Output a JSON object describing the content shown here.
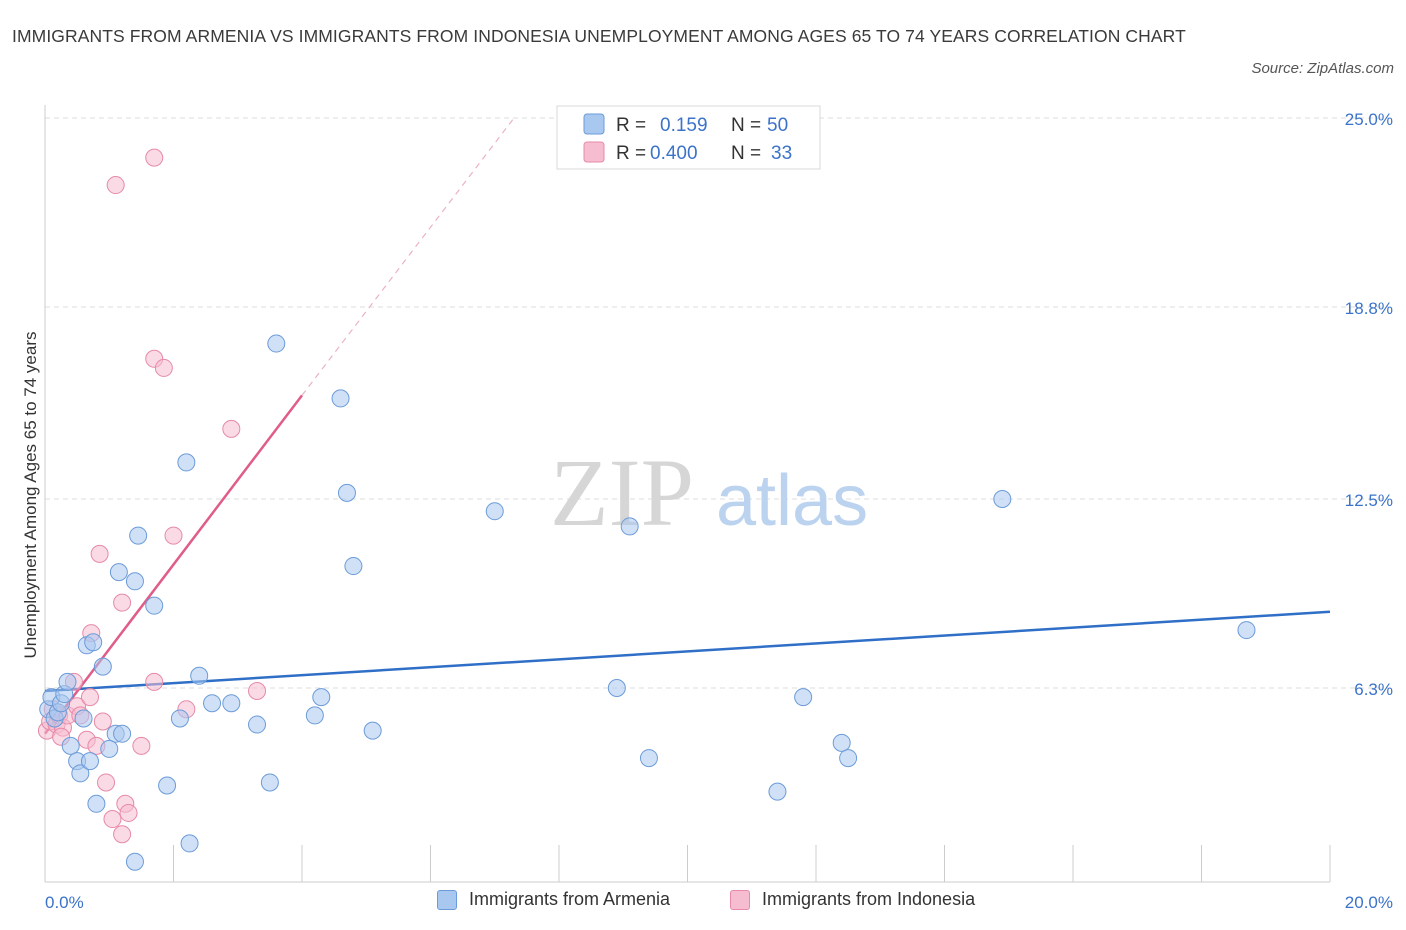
{
  "title": "IMMIGRANTS FROM ARMENIA VS IMMIGRANTS FROM INDONESIA UNEMPLOYMENT AMONG AGES 65 TO 74 YEARS CORRELATION CHART",
  "source": "Source: ZipAtlas.com",
  "watermark": {
    "zip": "ZIP",
    "atlas": "atlas"
  },
  "legend_box": {
    "rows": [
      {
        "r_label": "R =",
        "r_value": "0.159",
        "n_label": "N =",
        "n_value": "50"
      },
      {
        "r_label": "R =",
        "r_value": "0.400",
        "n_label": "N =",
        "n_value": "33"
      }
    ]
  },
  "colors": {
    "armenia_fill": "#a9c8f0",
    "armenia_stroke": "#6b9bd8",
    "armenia_line": "#2f6fc7",
    "indonesia_fill": "#f6bcd0",
    "indonesia_stroke": "#e68aa8",
    "indonesia_line": "#e05c8a",
    "grid": "#dddddd",
    "tick_text": "#3b73c9"
  },
  "chart_data": {
    "type": "scatter",
    "title": "IMMIGRANTS FROM ARMENIA VS IMMIGRANTS FROM INDONESIA UNEMPLOYMENT AMONG AGES 65 TO 74 YEARS CORRELATION CHART",
    "xlabel": "",
    "ylabel": "Unemployment Among Ages 65 to 74 years",
    "xlim": [
      0,
      20
    ],
    "ylim": [
      0,
      25
    ],
    "x_tick_labels": [
      {
        "value": 0,
        "label": "0.0%"
      },
      {
        "value": 20,
        "label": "20.0%"
      }
    ],
    "y_tick_labels": [
      {
        "value": 6.3,
        "label": "6.3%"
      },
      {
        "value": 12.5,
        "label": "12.5%"
      },
      {
        "value": 18.8,
        "label": "18.8%"
      },
      {
        "value": 25.0,
        "label": "25.0%"
      }
    ],
    "grid": true,
    "series": [
      {
        "name": "Immigrants from Armenia",
        "r": 0.159,
        "n": 50,
        "trend": {
          "x": [
            0,
            20
          ],
          "y": [
            6.2,
            8.8
          ]
        },
        "points": [
          [
            0.05,
            5.6
          ],
          [
            0.1,
            6.0
          ],
          [
            0.15,
            5.3
          ],
          [
            0.2,
            5.5
          ],
          [
            0.25,
            5.8
          ],
          [
            0.3,
            6.1
          ],
          [
            0.35,
            6.5
          ],
          [
            0.4,
            4.4
          ],
          [
            0.5,
            3.9
          ],
          [
            0.55,
            3.5
          ],
          [
            0.6,
            5.3
          ],
          [
            0.65,
            7.7
          ],
          [
            0.7,
            3.9
          ],
          [
            0.75,
            7.8
          ],
          [
            0.8,
            2.5
          ],
          [
            0.9,
            7.0
          ],
          [
            1.0,
            4.3
          ],
          [
            1.1,
            4.8
          ],
          [
            1.15,
            10.1
          ],
          [
            1.2,
            4.8
          ],
          [
            1.4,
            9.8
          ],
          [
            1.45,
            11.3
          ],
          [
            1.7,
            9.0
          ],
          [
            1.9,
            3.1
          ],
          [
            2.1,
            5.3
          ],
          [
            2.2,
            13.7
          ],
          [
            2.4,
            6.7
          ],
          [
            2.6,
            5.8
          ],
          [
            2.9,
            5.8
          ],
          [
            3.3,
            5.1
          ],
          [
            3.5,
            3.2
          ],
          [
            3.6,
            17.6
          ],
          [
            4.2,
            5.4
          ],
          [
            4.3,
            6.0
          ],
          [
            4.6,
            15.8
          ],
          [
            4.7,
            12.7
          ],
          [
            4.8,
            10.3
          ],
          [
            5.1,
            4.9
          ],
          [
            7.0,
            12.1
          ],
          [
            8.9,
            6.3
          ],
          [
            9.1,
            11.6
          ],
          [
            9.4,
            4.0
          ],
          [
            11.4,
            2.9
          ],
          [
            11.8,
            6.0
          ],
          [
            12.4,
            4.5
          ],
          [
            12.5,
            4.0
          ],
          [
            14.9,
            12.5
          ],
          [
            18.7,
            8.2
          ],
          [
            1.4,
            0.6
          ],
          [
            2.25,
            1.2
          ]
        ]
      },
      {
        "name": "Immigrants from Indonesia",
        "r": 0.4,
        "n": 33,
        "trend": {
          "x": [
            0,
            4.0
          ],
          "y": [
            4.8,
            15.9
          ]
        },
        "trend_dashed": {
          "x": [
            4.0,
            7.3
          ],
          "y": [
            15.9,
            25.0
          ]
        },
        "points": [
          [
            0.03,
            4.9
          ],
          [
            0.08,
            5.2
          ],
          [
            0.12,
            5.6
          ],
          [
            0.18,
            5.1
          ],
          [
            0.22,
            5.4
          ],
          [
            0.28,
            5.0
          ],
          [
            0.35,
            5.4
          ],
          [
            0.45,
            6.5
          ],
          [
            0.5,
            5.7
          ],
          [
            0.55,
            5.4
          ],
          [
            0.65,
            4.6
          ],
          [
            0.7,
            6.0
          ],
          [
            0.72,
            8.1
          ],
          [
            0.8,
            4.4
          ],
          [
            0.85,
            10.7
          ],
          [
            0.9,
            5.2
          ],
          [
            0.95,
            3.2
          ],
          [
            1.05,
            2.0
          ],
          [
            1.2,
            9.1
          ],
          [
            1.25,
            2.5
          ],
          [
            1.3,
            2.2
          ],
          [
            1.5,
            4.4
          ],
          [
            1.7,
            6.5
          ],
          [
            1.7,
            17.1
          ],
          [
            1.85,
            16.8
          ],
          [
            2.0,
            11.3
          ],
          [
            2.2,
            5.6
          ],
          [
            2.9,
            14.8
          ],
          [
            3.3,
            6.2
          ],
          [
            1.1,
            22.8
          ],
          [
            1.7,
            23.7
          ],
          [
            1.2,
            1.5
          ],
          [
            0.25,
            4.7
          ]
        ]
      }
    ]
  }
}
